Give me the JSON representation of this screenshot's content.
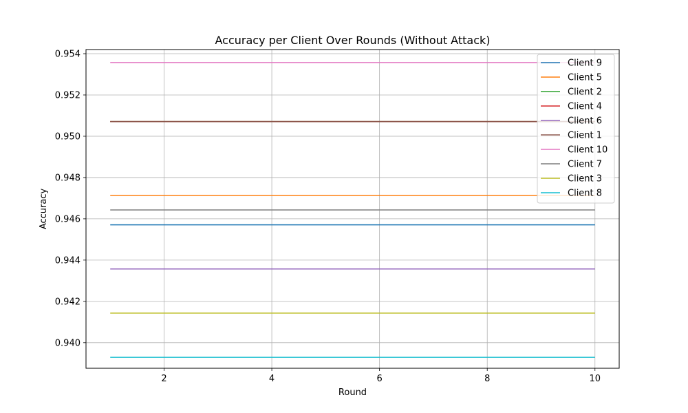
{
  "chart_data": {
    "type": "line",
    "title": "Accuracy per Client Over Rounds (Without Attack)",
    "xlabel": "Round",
    "ylabel": "Accuracy",
    "xlim": [
      0.55,
      10.45
    ],
    "ylim": [
      0.93876,
      0.9542
    ],
    "xticks": [
      2,
      4,
      6,
      8,
      10
    ],
    "yticks": [
      0.94,
      0.942,
      0.944,
      0.946,
      0.948,
      0.95,
      0.952,
      0.954
    ],
    "ytick_labels": [
      "0.940",
      "0.942",
      "0.944",
      "0.946",
      "0.948",
      "0.950",
      "0.952",
      "0.954"
    ],
    "grid": true,
    "legend_position": "top-right",
    "x": [
      1,
      2,
      3,
      4,
      5,
      6,
      7,
      8,
      9,
      10
    ],
    "series": [
      {
        "name": "Client 9",
        "color": "#1f77b4",
        "values": [
          0.94571,
          0.94571,
          0.94571,
          0.94571,
          0.94571,
          0.94571,
          0.94571,
          0.94571,
          0.94571,
          0.94571
        ]
      },
      {
        "name": "Client 5",
        "color": "#ff7f0e",
        "values": [
          0.94714,
          0.94714,
          0.94714,
          0.94714,
          0.94714,
          0.94714,
          0.94714,
          0.94714,
          0.94714,
          0.94714
        ]
      },
      {
        "name": "Client 2",
        "color": "#2ca02c",
        "values": [
          0.95071,
          0.95071,
          0.95071,
          0.95071,
          0.95071,
          0.95071,
          0.95071,
          0.95071,
          0.95071,
          0.95071
        ]
      },
      {
        "name": "Client 4",
        "color": "#d62728",
        "values": [
          0.95071,
          0.95071,
          0.95071,
          0.95071,
          0.95071,
          0.95071,
          0.95071,
          0.95071,
          0.95071,
          0.95071
        ]
      },
      {
        "name": "Client 6",
        "color": "#9467bd",
        "values": [
          0.94357,
          0.94357,
          0.94357,
          0.94357,
          0.94357,
          0.94357,
          0.94357,
          0.94357,
          0.94357,
          0.94357
        ]
      },
      {
        "name": "Client 1",
        "color": "#8c564b",
        "values": [
          0.95071,
          0.95071,
          0.95071,
          0.95071,
          0.95071,
          0.95071,
          0.95071,
          0.95071,
          0.95071,
          0.95071
        ]
      },
      {
        "name": "Client 10",
        "color": "#e377c2",
        "values": [
          0.95357,
          0.95357,
          0.95357,
          0.95357,
          0.95357,
          0.95357,
          0.95357,
          0.95357,
          0.95357,
          0.95357
        ]
      },
      {
        "name": "Client 7",
        "color": "#7f7f7f",
        "values": [
          0.94643,
          0.94643,
          0.94643,
          0.94643,
          0.94643,
          0.94643,
          0.94643,
          0.94643,
          0.94643,
          0.94643
        ]
      },
      {
        "name": "Client 3",
        "color": "#bcbd22",
        "values": [
          0.94143,
          0.94143,
          0.94143,
          0.94143,
          0.94143,
          0.94143,
          0.94143,
          0.94143,
          0.94143,
          0.94143
        ]
      },
      {
        "name": "Client 8",
        "color": "#17becf",
        "values": [
          0.93929,
          0.93929,
          0.93929,
          0.93929,
          0.93929,
          0.93929,
          0.93929,
          0.93929,
          0.93929,
          0.93929
        ]
      }
    ]
  }
}
